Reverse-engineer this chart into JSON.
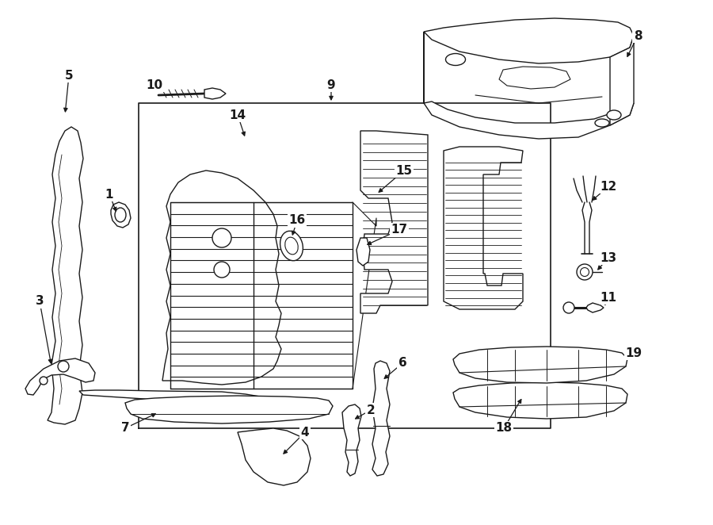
{
  "bg_color": "#ffffff",
  "line_color": "#1a1a1a",
  "line_width": 1.0,
  "label_fontsize": 11,
  "label_fontweight": "bold",
  "figsize": [
    9.0,
    6.62
  ],
  "dpi": 100,
  "xlim": [
    0,
    900
  ],
  "ylim": [
    0,
    662
  ]
}
